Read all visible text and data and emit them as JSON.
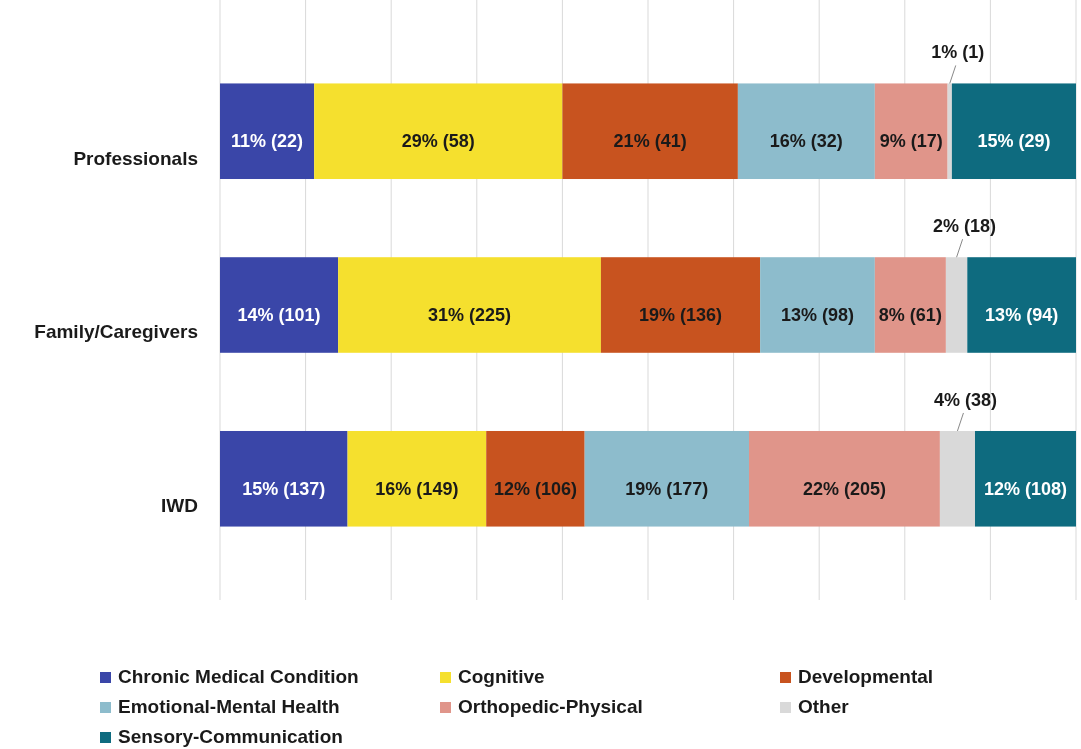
{
  "chart_data": {
    "type": "bar",
    "orientation": "horizontal",
    "stacked": true,
    "categories": [
      "Professionals",
      "Family/Caregivers",
      "IWD"
    ],
    "xlim": [
      0,
      100
    ],
    "xticks": [
      {
        "value": 0,
        "label": null
      },
      {
        "value": 10,
        "label": null
      },
      {
        "value": 20,
        "label": null
      },
      {
        "value": 30,
        "label": null
      },
      {
        "value": 40,
        "label": null
      },
      {
        "value": 50,
        "label": null
      },
      {
        "value": 60,
        "label": null
      },
      {
        "value": 70,
        "label": null
      },
      {
        "value": 80,
        "label": null
      },
      {
        "value": 90,
        "label": null
      },
      {
        "value": 100,
        "label": null
      }
    ],
    "tick_labels": "y",
    "grid": "x",
    "legend": "bottom",
    "series": [
      {
        "name": "Chronic Medical Condition",
        "color": "#3a46a8",
        "values": [
          11.0,
          13.8,
          14.9
        ],
        "value_labels": [
          "11% (22)",
          "14% (101)",
          "15% (137)"
        ]
      },
      {
        "name": "Cognitive",
        "color": "#f5e02e",
        "values": [
          29.0,
          30.7,
          16.2
        ],
        "value_labels": [
          "29% (58)",
          "31% (225)",
          "16% (149)"
        ]
      },
      {
        "name": "Developmental",
        "color": "#c8531f",
        "values": [
          20.5,
          18.6,
          11.5
        ],
        "value_labels": [
          "21% (41)",
          "19% (136)",
          "12% (106)"
        ]
      },
      {
        "name": "Emotional-Mental Health",
        "color": "#8dbccc",
        "values": [
          16.0,
          13.4,
          19.2
        ],
        "value_labels": [
          "16% (32)",
          "13% (98)",
          "19% (177)"
        ]
      },
      {
        "name": "Orthopedic-Physical",
        "color": "#e0958a",
        "values": [
          8.5,
          8.3,
          22.3
        ],
        "value_labels": [
          "9% (17)",
          "8% (61)",
          "22% (205)"
        ]
      },
      {
        "name": "Other",
        "color": "#d9d9d9",
        "values": [
          0.5,
          2.5,
          4.1
        ],
        "value_labels": [
          "1% (1)",
          "2% (18)",
          "4% (38)"
        ]
      },
      {
        "name": "Sensory-Communication",
        "color": "#0e6b7f",
        "values": [
          14.5,
          12.7,
          11.8
        ],
        "value_labels": [
          "15% (29)",
          "13% (94)",
          "12% (108)"
        ]
      }
    ]
  }
}
